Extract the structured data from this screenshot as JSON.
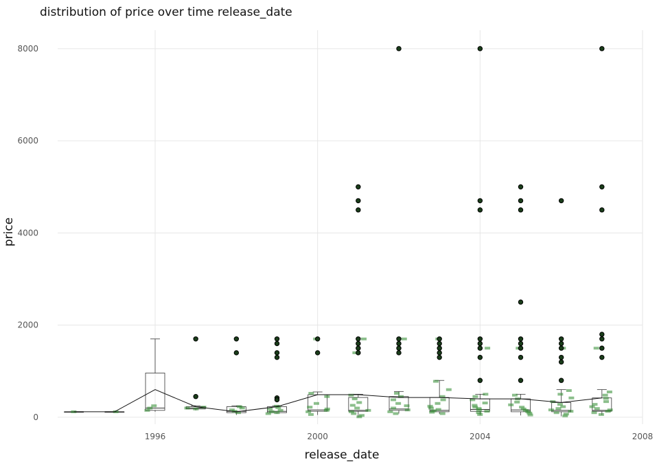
{
  "chart_data": {
    "type": "box",
    "title": "distribution of price over time release_date",
    "xlabel": "release_date",
    "ylabel": "price",
    "xlim": [
      1993.6,
      2008.0
    ],
    "ylim": [
      -150,
      8400
    ],
    "x_ticks": [
      1996,
      2000,
      2004,
      2008
    ],
    "y_ticks": [
      0,
      2000,
      4000,
      6000,
      8000
    ],
    "grid": true,
    "colors": {
      "box_stroke": "#333333",
      "jitter": "#2e8b2e",
      "outlier_fill": "#1a3d1a",
      "grid": "#e6e6e6"
    },
    "boxes": [
      {
        "x": 1994,
        "min": 120,
        "q1": 120,
        "median": 120,
        "q3": 120,
        "max": 120,
        "mean": 120
      },
      {
        "x": 1995,
        "min": 120,
        "q1": 120,
        "median": 120,
        "q3": 120,
        "max": 120,
        "mean": 120
      },
      {
        "x": 1996,
        "min": 120,
        "q1": 150,
        "median": 200,
        "q3": 960,
        "max": 1700,
        "mean": 600
      },
      {
        "x": 1997,
        "min": 150,
        "q1": 180,
        "median": 200,
        "q3": 230,
        "max": 250,
        "mean": 230
      },
      {
        "x": 1998,
        "min": 50,
        "q1": 100,
        "median": 130,
        "q3": 230,
        "max": 250,
        "mean": 120
      },
      {
        "x": 1999,
        "min": 80,
        "q1": 100,
        "median": 130,
        "q3": 230,
        "max": 250,
        "mean": 230
      },
      {
        "x": 2000,
        "min": 50,
        "q1": 130,
        "median": 160,
        "q3": 490,
        "max": 550,
        "mean": 490
      },
      {
        "x": 2001,
        "min": 0,
        "q1": 130,
        "median": 150,
        "q3": 430,
        "max": 500,
        "mean": 490
      },
      {
        "x": 2002,
        "min": 80,
        "q1": 150,
        "median": 180,
        "q3": 450,
        "max": 560,
        "mean": 430
      },
      {
        "x": 2003,
        "min": 70,
        "q1": 120,
        "median": 150,
        "q3": 430,
        "max": 800,
        "mean": 430
      },
      {
        "x": 2004,
        "min": 50,
        "q1": 130,
        "median": 170,
        "q3": 400,
        "max": 500,
        "mean": 400
      },
      {
        "x": 2005,
        "min": 40,
        "q1": 120,
        "median": 160,
        "q3": 400,
        "max": 500,
        "mean": 400
      },
      {
        "x": 2006,
        "min": 20,
        "q1": 120,
        "median": 150,
        "q3": 320,
        "max": 600,
        "mean": 320
      },
      {
        "x": 2007,
        "min": 50,
        "q1": 130,
        "median": 150,
        "q3": 420,
        "max": 600,
        "mean": 420
      }
    ],
    "outliers": [
      {
        "x": 1997,
        "values": [
          1700,
          450
        ]
      },
      {
        "x": 1998,
        "values": [
          1700,
          1400
        ]
      },
      {
        "x": 1999,
        "values": [
          1700,
          1600,
          1400,
          1300,
          420,
          380
        ]
      },
      {
        "x": 2000,
        "values": [
          1700,
          1400
        ]
      },
      {
        "x": 2001,
        "values": [
          5000,
          4700,
          4500,
          1700,
          1600,
          1500,
          1400
        ]
      },
      {
        "x": 2002,
        "values": [
          8000,
          1700,
          1600,
          1500,
          1400
        ]
      },
      {
        "x": 2003,
        "values": [
          1700,
          1600,
          1500,
          1400,
          1300
        ]
      },
      {
        "x": 2004,
        "values": [
          8000,
          4700,
          4500,
          1700,
          1600,
          1500,
          1300,
          800
        ]
      },
      {
        "x": 2005,
        "values": [
          5000,
          4700,
          4500,
          2500,
          1700,
          1600,
          1500,
          1300,
          800
        ]
      },
      {
        "x": 2006,
        "values": [
          4700,
          1700,
          1600,
          1500,
          1300,
          1200,
          800
        ]
      },
      {
        "x": 2007,
        "values": [
          8000,
          5000,
          4500,
          1800,
          1700,
          1500,
          1300
        ]
      }
    ],
    "jitter": [
      {
        "x": 1994,
        "values": [
          120
        ]
      },
      {
        "x": 1995,
        "values": [
          120
        ]
      },
      {
        "x": 1996,
        "values": [
          150,
          200,
          250
        ]
      },
      {
        "x": 1997,
        "values": [
          180,
          200,
          220
        ]
      },
      {
        "x": 1998,
        "values": [
          100,
          130,
          160,
          200,
          230
        ]
      },
      {
        "x": 1999,
        "values": [
          80,
          100,
          120,
          150,
          180,
          210,
          240
        ]
      },
      {
        "x": 2000,
        "values": [
          60,
          120,
          150,
          180,
          220,
          300,
          450,
          520,
          1700
        ]
      },
      {
        "x": 2001,
        "values": [
          10,
          40,
          80,
          120,
          150,
          200,
          260,
          320,
          400,
          480,
          1700,
          1400
        ]
      },
      {
        "x": 2002,
        "values": [
          80,
          120,
          160,
          200,
          250,
          300,
          380,
          450,
          520,
          1700
        ]
      },
      {
        "x": 2003,
        "values": [
          80,
          110,
          140,
          170,
          200,
          240,
          300,
          380,
          450,
          600,
          780,
          1700
        ]
      },
      {
        "x": 2004,
        "values": [
          60,
          100,
          130,
          160,
          190,
          220,
          260,
          310,
          380,
          450,
          500,
          1500
        ]
      },
      {
        "x": 2005,
        "values": [
          50,
          90,
          120,
          150,
          180,
          220,
          270,
          330,
          400,
          480,
          1500
        ]
      },
      {
        "x": 2006,
        "values": [
          30,
          70,
          100,
          130,
          160,
          190,
          230,
          280,
          340,
          420,
          500,
          580,
          1500
        ]
      },
      {
        "x": 2007,
        "values": [
          60,
          100,
          130,
          160,
          190,
          230,
          280,
          340,
          410,
          480,
          550,
          1500
        ]
      }
    ]
  }
}
